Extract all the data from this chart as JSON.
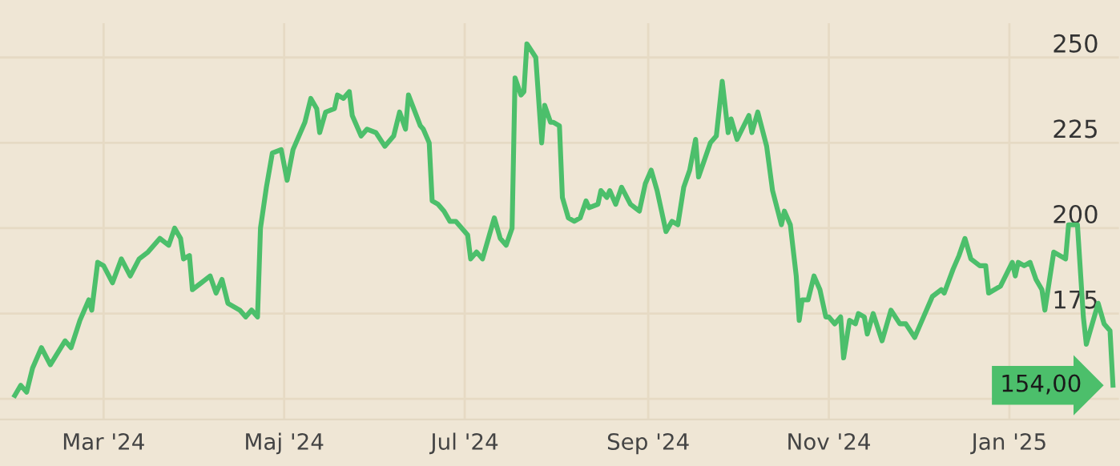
{
  "chart_data": {
    "type": "line",
    "x": [
      "2024-01-31",
      "2024-02-02",
      "2024-02-04",
      "2024-02-06",
      "2024-02-09",
      "2024-02-12",
      "2024-02-17",
      "2024-02-19",
      "2024-02-22",
      "2024-02-25",
      "2024-02-26",
      "2024-02-28",
      "2024-03-01",
      "2024-03-04",
      "2024-03-07",
      "2024-03-10",
      "2024-03-13",
      "2024-03-16",
      "2024-03-20",
      "2024-03-23",
      "2024-03-25",
      "2024-03-27",
      "2024-03-28",
      "2024-03-30",
      "2024-03-31",
      "2024-04-03",
      "2024-04-06",
      "2024-04-08",
      "2024-04-10",
      "2024-04-12",
      "2024-04-16",
      "2024-04-18",
      "2024-04-20",
      "2024-04-22",
      "2024-04-23",
      "2024-04-25",
      "2024-04-27",
      "2024-04-30",
      "2024-05-02",
      "2024-05-04",
      "2024-05-08",
      "2024-05-10",
      "2024-05-12",
      "2024-05-13",
      "2024-05-15",
      "2024-05-18",
      "2024-05-19",
      "2024-05-21",
      "2024-05-23",
      "2024-05-24",
      "2024-05-27",
      "2024-05-29",
      "2024-06-01",
      "2024-06-04",
      "2024-06-07",
      "2024-06-09",
      "2024-06-11",
      "2024-06-12",
      "2024-06-16",
      "2024-06-17",
      "2024-06-19",
      "2024-06-20",
      "2024-06-22",
      "2024-06-24",
      "2024-06-26",
      "2024-06-28",
      "2024-07-02",
      "2024-07-03",
      "2024-07-05",
      "2024-07-07",
      "2024-07-11",
      "2024-07-13",
      "2024-07-15",
      "2024-07-17",
      "2024-07-18",
      "2024-07-20",
      "2024-07-21",
      "2024-07-22",
      "2024-07-25",
      "2024-07-27",
      "2024-07-28",
      "2024-07-30",
      "2024-07-31",
      "2024-08-02",
      "2024-08-03",
      "2024-08-05",
      "2024-08-07",
      "2024-08-09",
      "2024-08-11",
      "2024-08-12",
      "2024-08-15",
      "2024-08-16",
      "2024-08-18",
      "2024-08-19",
      "2024-08-21",
      "2024-08-23",
      "2024-08-26",
      "2024-08-29",
      "2024-08-31",
      "2024-09-02",
      "2024-09-04",
      "2024-09-07",
      "2024-09-09",
      "2024-09-11",
      "2024-09-13",
      "2024-09-15",
      "2024-09-17",
      "2024-09-18",
      "2024-09-22",
      "2024-09-24",
      "2024-09-26",
      "2024-09-28",
      "2024-09-29",
      "2024-10-01",
      "2024-10-05",
      "2024-10-06",
      "2024-10-08",
      "2024-10-11",
      "2024-10-13",
      "2024-10-16",
      "2024-10-17",
      "2024-10-19",
      "2024-10-21",
      "2024-10-22",
      "2024-10-23",
      "2024-10-25",
      "2024-10-27",
      "2024-10-29",
      "2024-10-31",
      "2024-11-01",
      "2024-11-03",
      "2024-11-05",
      "2024-11-06",
      "2024-11-08",
      "2024-11-10",
      "2024-11-11",
      "2024-11-13",
      "2024-11-14",
      "2024-11-16",
      "2024-11-19",
      "2024-11-22",
      "2024-11-25",
      "2024-11-27",
      "2024-11-30",
      "2024-12-02",
      "2024-12-06",
      "2024-12-09",
      "2024-12-10",
      "2024-12-13",
      "2024-12-15",
      "2024-12-17",
      "2024-12-19",
      "2024-12-22",
      "2024-12-24",
      "2024-12-25",
      "2024-12-29",
      "2025-01-02",
      "2025-01-03",
      "2025-01-04",
      "2025-01-06",
      "2025-01-08",
      "2025-01-10",
      "2025-01-12",
      "2025-01-13",
      "2025-01-16",
      "2025-01-20",
      "2025-01-21",
      "2025-01-24",
      "2025-01-26",
      "2025-01-27",
      "2025-01-29",
      "2025-01-31",
      "2025-02-02",
      "2025-02-04",
      "2025-02-05"
    ],
    "series": [
      {
        "color": "#4cbf6b",
        "values": [
          151,
          154,
          152,
          159,
          165,
          160,
          167,
          165,
          173,
          179,
          176,
          190,
          189,
          184,
          191,
          186,
          191,
          193,
          197,
          195,
          200,
          197,
          191,
          192,
          182,
          184,
          186,
          181,
          185,
          178,
          176,
          174,
          176,
          174,
          200,
          212,
          222,
          223,
          214,
          223,
          231,
          238,
          235,
          228,
          234,
          235,
          239,
          238,
          240,
          233,
          227,
          229,
          228,
          224,
          227,
          234,
          229,
          239,
          230,
          229,
          225,
          208,
          207,
          205,
          202,
          202,
          198,
          191,
          193,
          191,
          203,
          197,
          195,
          200,
          244,
          239,
          240,
          254,
          250,
          225,
          236,
          231,
          231,
          230,
          209,
          203,
          202,
          203,
          208,
          206,
          207,
          211,
          209,
          211,
          207,
          212,
          207,
          205,
          213,
          217,
          211,
          199,
          202,
          201,
          212,
          217,
          226,
          215,
          225,
          227,
          243,
          228,
          232,
          226,
          233,
          228,
          234,
          224,
          211,
          201,
          205,
          201,
          186,
          173,
          179,
          179,
          186,
          182,
          174,
          174,
          172,
          174,
          162,
          173,
          172,
          175,
          174,
          169,
          175,
          167,
          176,
          172,
          172,
          168,
          172,
          180,
          182,
          181,
          188,
          192,
          197,
          191,
          189,
          189,
          181,
          183,
          190,
          186,
          190,
          189,
          190,
          185,
          182,
          176,
          193,
          191,
          201,
          201,
          174,
          166,
          172,
          178,
          172,
          170,
          154
        ]
      }
    ],
    "xlim": [
      "2024-01-26",
      "2025-02-07"
    ],
    "xticks": [
      {
        "value": "2024-03-01",
        "label": "Mar '24"
      },
      {
        "value": "2024-05-01",
        "label": "Maj '24"
      },
      {
        "value": "2024-07-01",
        "label": "Jul '24"
      },
      {
        "value": "2024-09-01",
        "label": "Sep '24"
      },
      {
        "value": "2024-11-01",
        "label": "Nov '24"
      },
      {
        "value": "2025-01-01",
        "label": "Jan '25"
      }
    ],
    "ylim": [
      144,
      260
    ],
    "yticks": [
      {
        "value": 150,
        "label": null
      },
      175,
      200,
      225,
      250
    ],
    "grid": true,
    "legend": false,
    "marker": "none",
    "line_style": "solid",
    "annotations": [
      {
        "text": "154,00",
        "x": "2025-02-05",
        "y": 154
      }
    ]
  }
}
